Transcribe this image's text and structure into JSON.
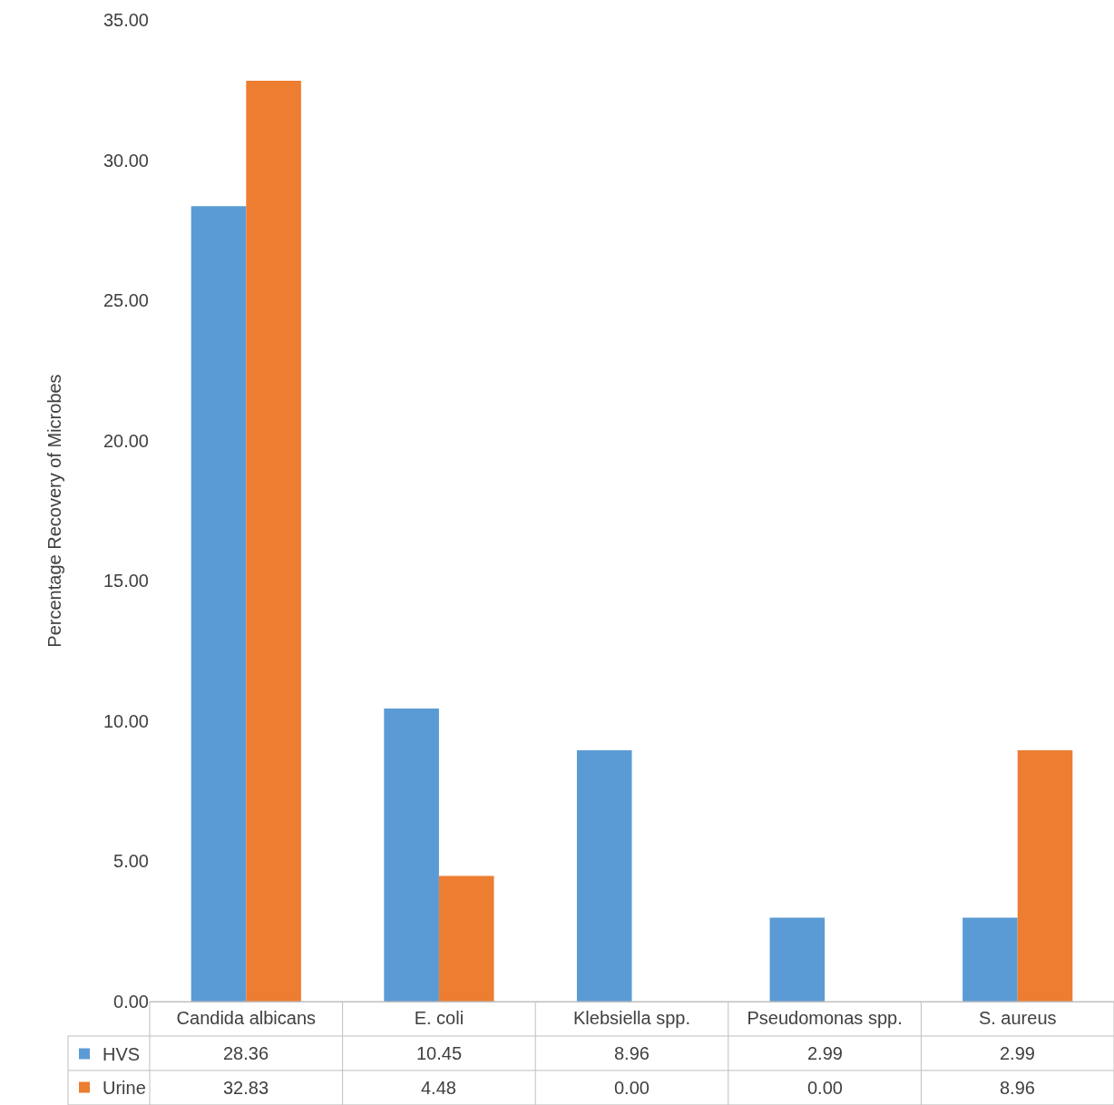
{
  "chart_data": {
    "type": "bar",
    "ylabel": "Percentage Recovery of Microbes",
    "categories": [
      "Candida albicans",
      "E. coli",
      "Klebsiella spp.",
      "Pseudomonas spp.",
      "S. aureus"
    ],
    "series": [
      {
        "name": "HVS",
        "color": "#5b9bd5",
        "values": [
          28.36,
          10.45,
          8.96,
          2.99,
          2.99
        ],
        "value_labels": [
          "28.36",
          "10.45",
          "8.96",
          "2.99",
          "2.99"
        ]
      },
      {
        "name": "Urine",
        "color": "#ed7d31",
        "values": [
          32.83,
          4.48,
          0.0,
          0.0,
          8.96
        ],
        "value_labels": [
          "32.83",
          "4.48",
          "0.00",
          "0.00",
          "8.96"
        ]
      }
    ],
    "ylim": [
      0,
      35
    ],
    "yticks": [
      {
        "value": 0,
        "label": "0.00"
      },
      {
        "value": 5,
        "label": "5.00"
      },
      {
        "value": 10,
        "label": "10.00"
      },
      {
        "value": 15,
        "label": "15.00"
      },
      {
        "value": 20,
        "label": "20.00"
      },
      {
        "value": 25,
        "label": "25.00"
      },
      {
        "value": 30,
        "label": "30.00"
      },
      {
        "value": 35,
        "label": "35.00"
      }
    ],
    "legend": "bottom left"
  }
}
